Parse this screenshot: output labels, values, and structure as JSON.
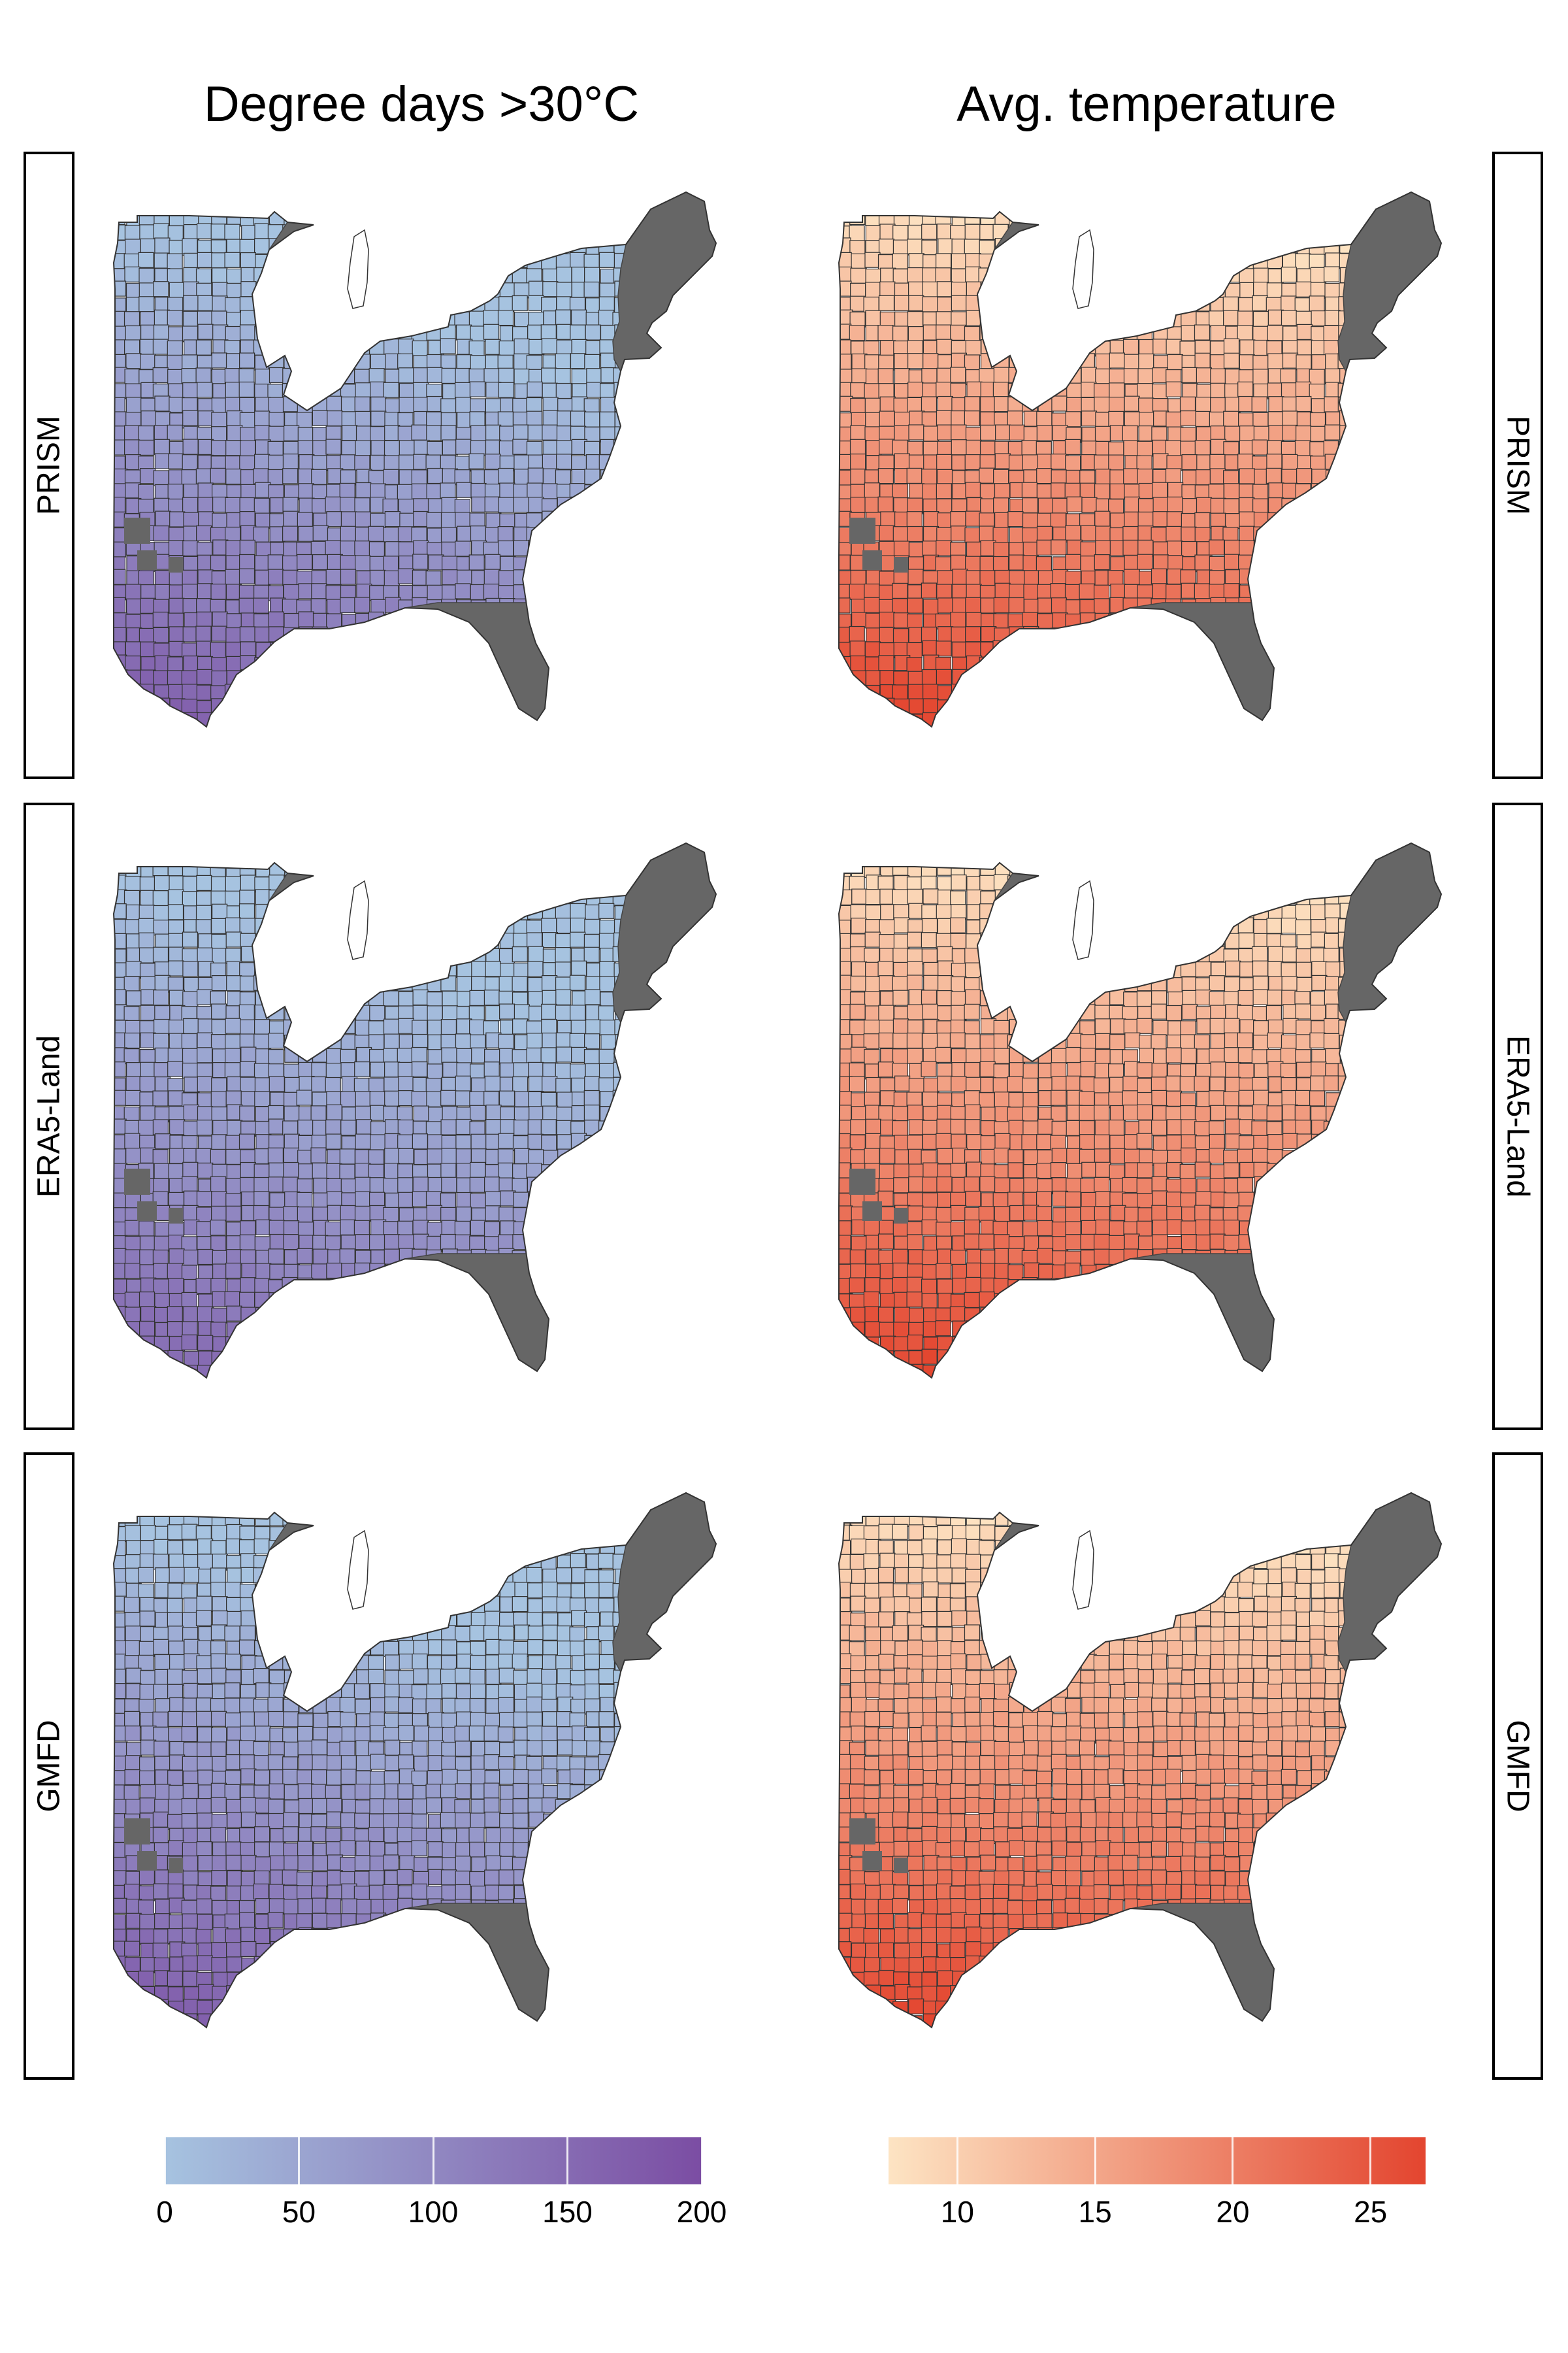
{
  "columns": [
    "Degree days >30°C",
    "Avg. temperature"
  ],
  "rows": [
    "PRISM",
    "ERA5-Land",
    "GMFD"
  ],
  "colorbars": {
    "degree_days": {
      "ticks": [
        "0",
        "50",
        "100",
        "150",
        "200"
      ],
      "tick_values": [
        0,
        50,
        100,
        150,
        200
      ],
      "range": [
        0,
        200
      ],
      "color_low": "#a6c3e0",
      "color_high": "#7b4da3"
    },
    "temperature": {
      "ticks": [
        "10",
        "15",
        "20",
        "25"
      ],
      "tick_values": [
        10,
        15,
        20,
        25
      ],
      "range": [
        7.5,
        27
      ],
      "color_low": "#fde4c3",
      "color_high": "#e3452f"
    }
  },
  "colors": {
    "missing": "#666666",
    "county_border": "#333333"
  }
}
